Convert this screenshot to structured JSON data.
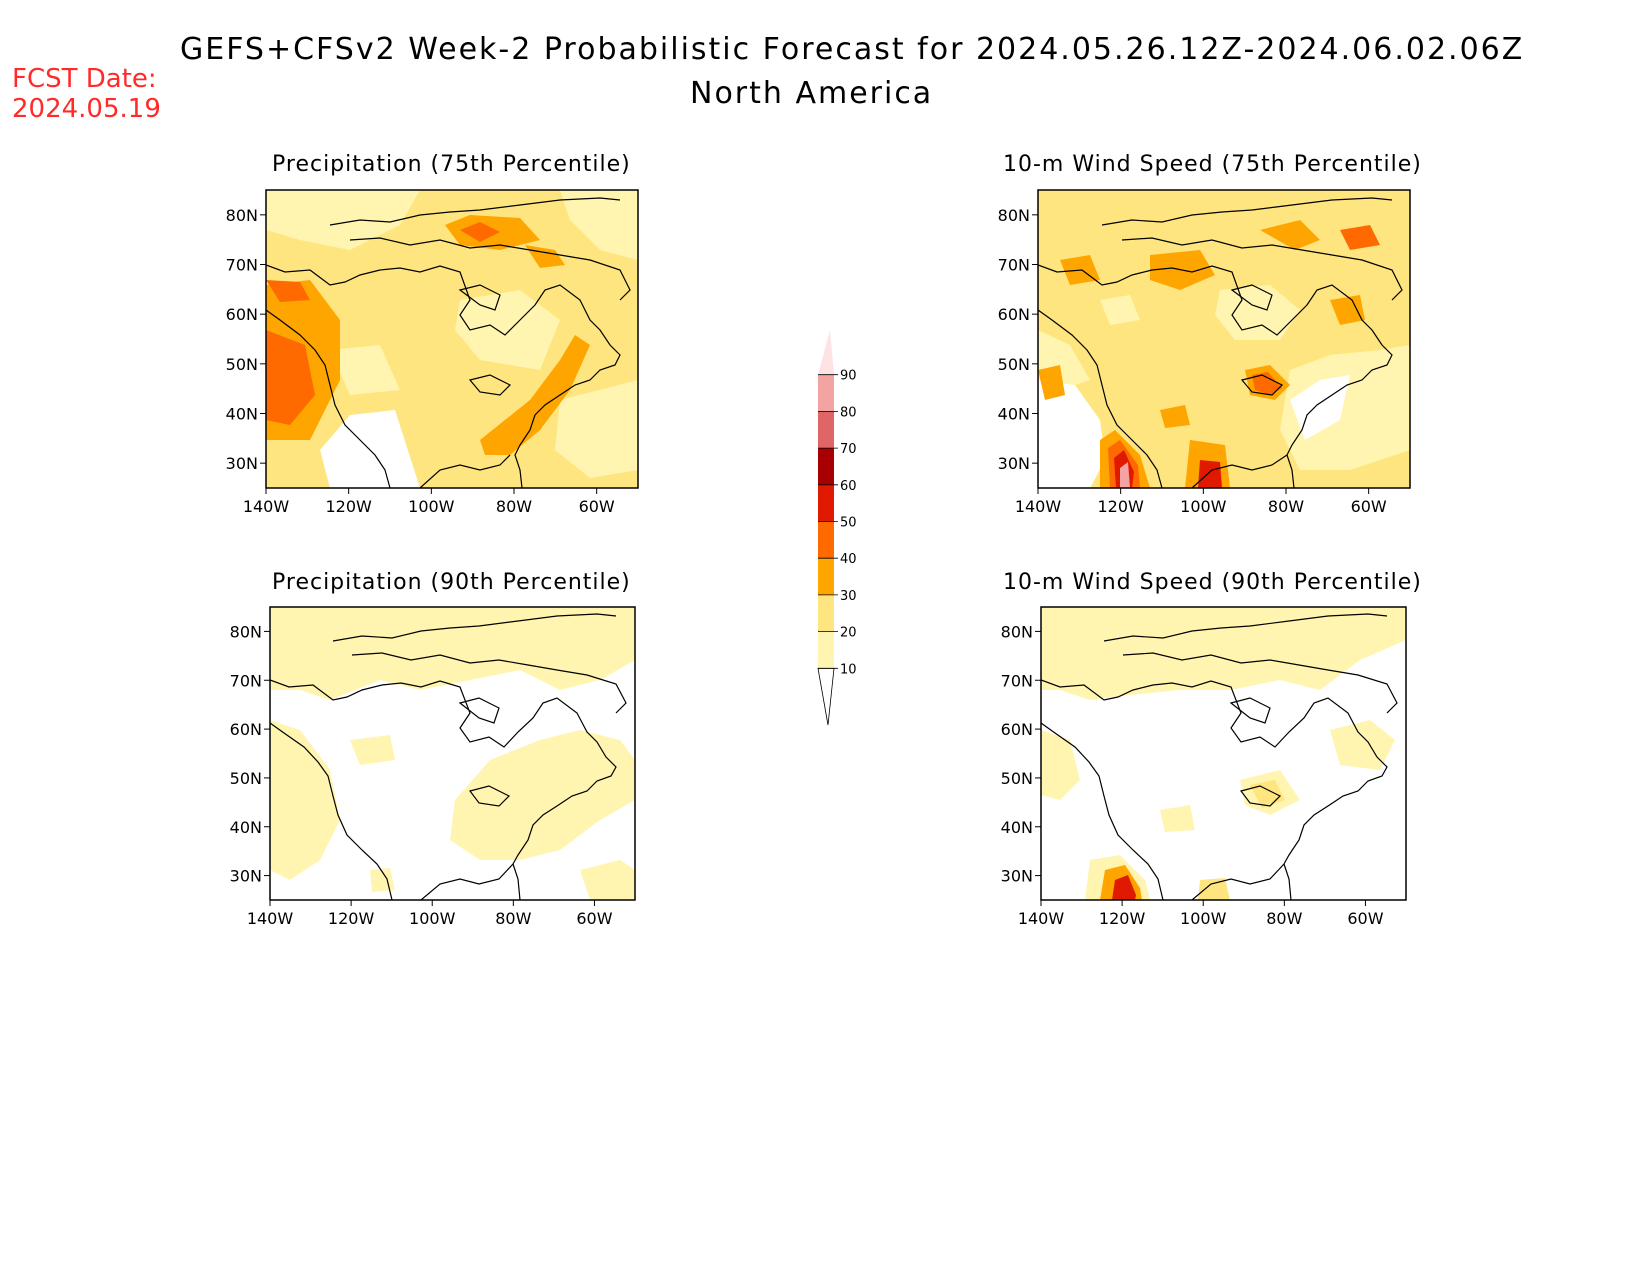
{
  "header": {
    "title": "GEFS+CFSv2 Week-2 Probabilistic Forecast for 2024.05.26.12Z-2024.06.02.06Z",
    "subtitle": "North America",
    "fcst_label": "FCST Date:",
    "fcst_date": "2024.05.19"
  },
  "panels": [
    {
      "id": "precip-75",
      "title": "Precipitation (75th Percentile)"
    },
    {
      "id": "wind-75",
      "title": "10-m Wind Speed (75th Percentile)"
    },
    {
      "id": "precip-90",
      "title": "Precipitation (90th Percentile)"
    },
    {
      "id": "wind-90",
      "title": "10-m Wind Speed (90th Percentile)"
    }
  ],
  "axes": {
    "lat_labels": [
      "80N",
      "70N",
      "60N",
      "50N",
      "40N",
      "30N"
    ],
    "lat_values": [
      80,
      70,
      60,
      50,
      40,
      30
    ],
    "lon_labels": [
      "140W",
      "120W",
      "100W",
      "80W",
      "60W"
    ],
    "lon_values": [
      -140,
      -120,
      -100,
      -80,
      -60
    ],
    "lat_range": [
      25,
      85
    ],
    "lon_range": [
      -140,
      -50
    ]
  },
  "colorbar": {
    "levels": [
      "10",
      "20",
      "30",
      "40",
      "50",
      "60",
      "70",
      "80",
      "90"
    ],
    "colors": [
      "#fff5b0",
      "#ffe57f",
      "#ffa500",
      "#ff6a00",
      "#e01a00",
      "#a80000",
      "#e06666",
      "#f4a3a3",
      "#fde3e3"
    ]
  },
  "colors": {
    "fcst_text": "#ff2a2a",
    "white": "#ffffff"
  }
}
